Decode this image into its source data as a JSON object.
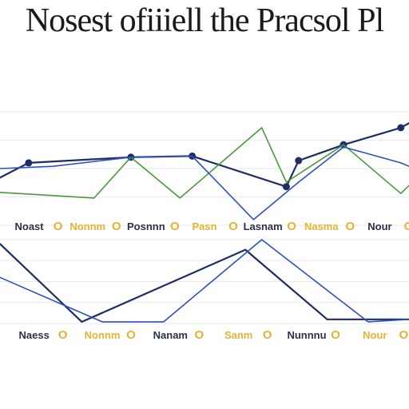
{
  "title": "Nosest ofiiiell the Pracsol Pl",
  "colors": {
    "navy": "#1f2d63",
    "blue": "#2b4fc9",
    "green": "#4a9a3c",
    "gold": "#e6b230",
    "gridline": "#e9eaee",
    "tick_dark": "#2b3147"
  },
  "chart_data": [
    {
      "type": "line",
      "grid": true,
      "xlim": [
        0,
        100
      ],
      "ylim": [
        0,
        100
      ],
      "x_ticks": [
        "Noast",
        "Nonnm",
        "Posnnn",
        "Pasn",
        "Lasnam",
        "Nasma",
        "Nour"
      ],
      "series": [
        {
          "color": "navy",
          "markers": true,
          "x": [
            0,
            7,
            32,
            47,
            70,
            73,
            84,
            98,
            100
          ],
          "y": [
            42,
            55,
            60,
            61,
            34,
            57,
            71,
            86,
            90
          ]
        },
        {
          "color": "green",
          "markers": false,
          "x": [
            0,
            23,
            32,
            44,
            64,
            70,
            84,
            98,
            100
          ],
          "y": [
            29,
            24,
            60,
            24,
            86,
            38,
            71,
            28,
            35
          ]
        },
        {
          "color": "blue",
          "markers": false,
          "x": [
            0,
            13,
            32,
            47,
            62,
            73,
            84,
            98,
            100
          ],
          "y": [
            50,
            52,
            60,
            61,
            5,
            38,
            69,
            55,
            52
          ]
        }
      ]
    },
    {
      "type": "line",
      "grid": true,
      "xlim": [
        0,
        100
      ],
      "ylim": [
        0,
        100
      ],
      "x_ticks": [
        "Naess",
        "Nonnm",
        "Nanam",
        "Sanm",
        "Nunnnu",
        "Nour"
      ],
      "series": [
        {
          "color": "navy",
          "markers": false,
          "x": [
            0,
            20,
            40,
            60,
            80,
            100
          ],
          "y": [
            95,
            2,
            45,
            88,
            5,
            5
          ]
        },
        {
          "color": "blue",
          "markers": false,
          "x": [
            0,
            25,
            40,
            64,
            90,
            100
          ],
          "y": [
            55,
            2,
            2,
            100,
            2,
            5
          ]
        }
      ]
    }
  ]
}
